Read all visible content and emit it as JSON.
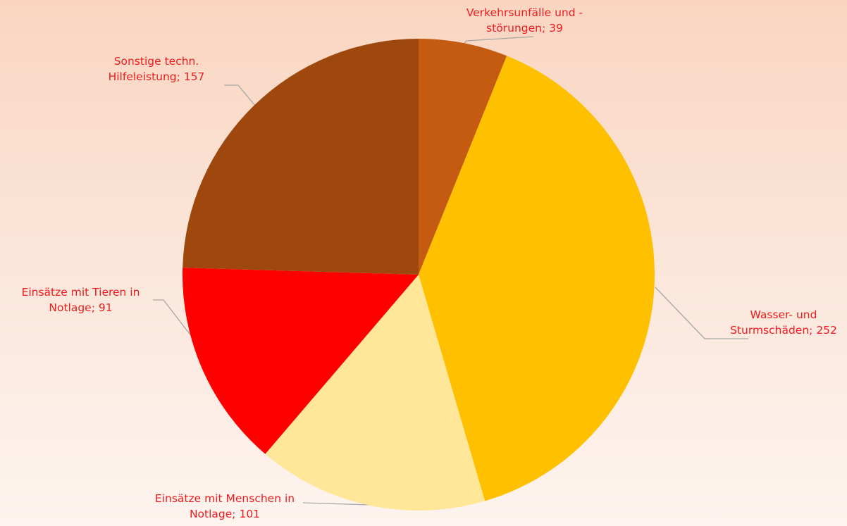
{
  "chart_data": {
    "type": "pie",
    "categories": [
      "Verkehrsunfälle und - störungen",
      "Wasser- und Sturmschäden",
      "Einsätze mit Menschen in Notlage",
      "Einsätze mit Tieren in Notlage",
      "Sonstige techn. Hilfeleistung"
    ],
    "values": [
      39,
      252,
      101,
      91,
      157
    ],
    "colors": [
      "#c55a11",
      "#ffc000",
      "#ffe699",
      "#ff0000",
      "#9e480e"
    ],
    "label_separator": "; "
  }
}
